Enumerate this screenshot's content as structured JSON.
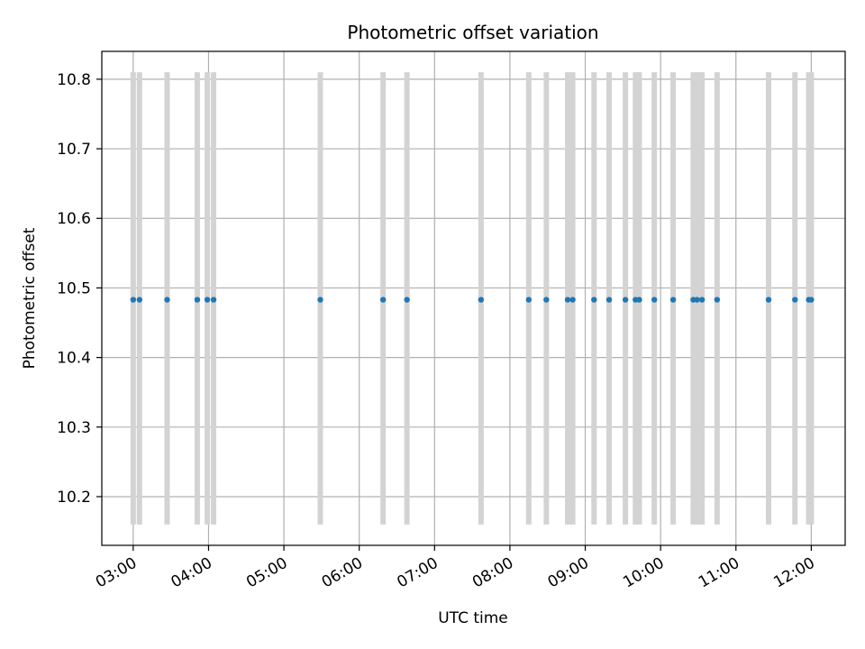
{
  "chart_data": {
    "type": "scatter",
    "title": "Photometric offset variation",
    "xlabel": "UTC time",
    "ylabel": "Photometric offset",
    "x_ticks": [
      "03:00",
      "04:00",
      "05:00",
      "06:00",
      "07:00",
      "08:00",
      "09:00",
      "10:00",
      "11:00",
      "12:00"
    ],
    "y_ticks": [
      "10.2",
      "10.3",
      "10.4",
      "10.5",
      "10.6",
      "10.7",
      "10.8"
    ],
    "xlim": [
      "02:35",
      "12:27"
    ],
    "ylim": [
      10.13,
      10.84
    ],
    "grid": true,
    "x": [
      "03:00",
      "03:05",
      "03:27",
      "03:51",
      "03:59",
      "04:04",
      "05:29",
      "06:19",
      "06:38",
      "07:37",
      "08:15",
      "08:29",
      "08:46",
      "08:50",
      "09:07",
      "09:19",
      "09:32",
      "09:40",
      "09:43",
      "09:55",
      "10:10",
      "10:26",
      "10:29",
      "10:33",
      "10:45",
      "11:26",
      "11:47",
      "11:58",
      "12:00"
    ],
    "values": [
      10.483,
      10.483,
      10.483,
      10.483,
      10.483,
      10.483,
      10.483,
      10.483,
      10.483,
      10.483,
      10.483,
      10.483,
      10.483,
      10.483,
      10.483,
      10.483,
      10.483,
      10.483,
      10.483,
      10.483,
      10.483,
      10.483,
      10.483,
      10.483,
      10.483,
      10.483,
      10.483,
      10.483,
      10.483
    ],
    "error_bars": {
      "lower": 10.16,
      "upper": 10.81,
      "color": "#d3d3d3"
    },
    "point_color": "#1f77b4",
    "grid_color": "#b0b0b0"
  }
}
